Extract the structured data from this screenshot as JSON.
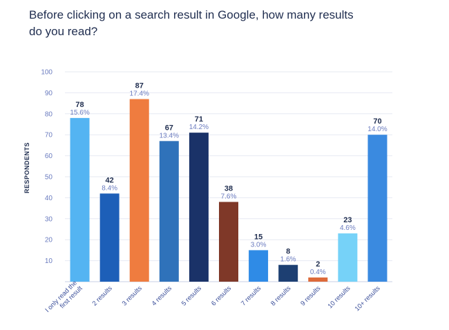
{
  "chart_data": {
    "type": "bar",
    "title_lines": [
      "Before clicking on a search result in Google, how many results",
      "do you read?"
    ],
    "ylabel": "RESPONDENTS",
    "ylim": [
      0,
      100
    ],
    "yticks": [
      "10",
      "20",
      "30",
      "40",
      "50",
      "60",
      "70",
      "80",
      "90",
      "100"
    ],
    "ytick_values": [
      10,
      20,
      30,
      40,
      50,
      60,
      70,
      80,
      90,
      100
    ],
    "grid": true,
    "categories": [
      [
        "I only read the",
        "first result"
      ],
      [
        "2 results"
      ],
      [
        "3 results"
      ],
      [
        "4 results"
      ],
      [
        "5 results"
      ],
      [
        "6 results"
      ],
      [
        "7 results"
      ],
      [
        "8 results"
      ],
      [
        "9 results"
      ],
      [
        "10 results"
      ],
      [
        "10+ results"
      ]
    ],
    "values": [
      78,
      42,
      87,
      67,
      71,
      38,
      15,
      8,
      2,
      23,
      70
    ],
    "value_labels": [
      "78",
      "42",
      "87",
      "67",
      "71",
      "38",
      "15",
      "8",
      "2",
      "23",
      "70"
    ],
    "percent_labels": [
      "15.6%",
      "8.4%",
      "17.4%",
      "13.4%",
      "14.2%",
      "7.6%",
      "3.0%",
      "1.6%",
      "0.4%",
      "4.6%",
      "14.0%"
    ],
    "colors": [
      "#54b4f2",
      "#1d5fb8",
      "#ef7c3f",
      "#2f72ba",
      "#1a3268",
      "#7f3828",
      "#2f8be6",
      "#1d3f72",
      "#dd6a3a",
      "#76d2f8",
      "#3a8ae0"
    ]
  }
}
